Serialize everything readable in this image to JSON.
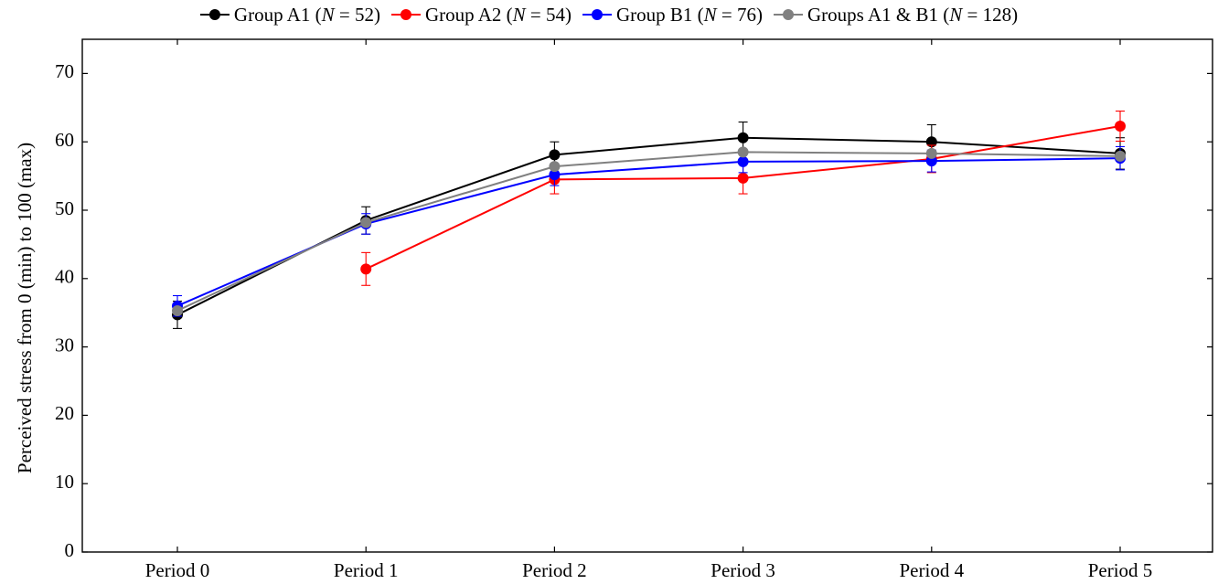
{
  "chart_data": {
    "type": "line",
    "title": "",
    "xlabel": "",
    "ylabel": "Perceived stress from 0 (min) to 100 (max)",
    "categories": [
      "Period 0",
      "Period 1",
      "Period 2",
      "Period 3",
      "Period 4",
      "Period 5"
    ],
    "ylim": [
      0,
      75
    ],
    "yticks": [
      0,
      10,
      20,
      30,
      40,
      50,
      60,
      70
    ],
    "grid": false,
    "legend_position": "top",
    "series": [
      {
        "name": "Group A1 (N = 52)",
        "label_text": "Group A1 (",
        "n_value": "52",
        "color": "#000000",
        "values": [
          34.7,
          48.5,
          58.1,
          60.6,
          60.0,
          58.3
        ],
        "errors": [
          2.0,
          2.0,
          1.9,
          2.3,
          2.5,
          2.3
        ]
      },
      {
        "name": "Group A2 (N = 54)",
        "label_text": "Group A2 (",
        "n_value": "54",
        "color": "#ff0000",
        "values": [
          null,
          41.4,
          54.5,
          54.7,
          57.5,
          62.3
        ],
        "errors": [
          null,
          2.4,
          2.1,
          2.3,
          2.0,
          2.2
        ]
      },
      {
        "name": "Group B1 (N = 76)",
        "label_text": "Group B1 (",
        "n_value": "76",
        "color": "#0000ff",
        "values": [
          36.0,
          48.0,
          55.2,
          57.1,
          57.2,
          57.6
        ],
        "errors": [
          1.5,
          1.5,
          1.6,
          1.6,
          1.6,
          1.7
        ]
      },
      {
        "name": "Groups A1 & B1 (N = 128)",
        "label_text": "Groups A1 & B1 (",
        "n_value": "128",
        "color": "#808080",
        "values": [
          35.3,
          48.2,
          56.4,
          58.5,
          58.3,
          57.9
        ],
        "errors": [
          null,
          null,
          null,
          null,
          null,
          null
        ]
      }
    ]
  }
}
